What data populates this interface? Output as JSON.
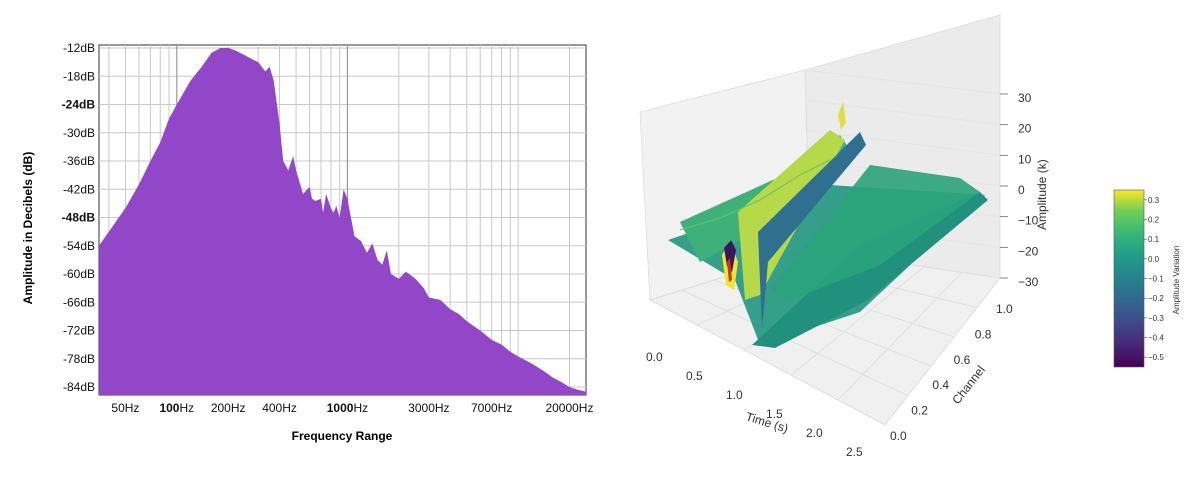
{
  "chart_data": [
    {
      "type": "area",
      "xscale": "log",
      "xlabel": "Frequency Range",
      "ylabel": "Amplitude in Decibels (dB)",
      "ylim": [
        -84,
        -12
      ],
      "xlim": [
        35,
        25000
      ],
      "grid": true,
      "fill_color": "#9247c8",
      "y_ticks": [
        {
          "value": -12,
          "label": "-12dB"
        },
        {
          "value": -18,
          "label": "-18dB"
        },
        {
          "value": -24,
          "label": "-24dB"
        },
        {
          "value": -30,
          "label": "-30dB"
        },
        {
          "value": -36,
          "label": "-36dB"
        },
        {
          "value": -42,
          "label": "-42dB"
        },
        {
          "value": -48,
          "label": "-48dB"
        },
        {
          "value": -54,
          "label": "-54dB"
        },
        {
          "value": -60,
          "label": "-60dB"
        },
        {
          "value": -66,
          "label": "-66dB"
        },
        {
          "value": -72,
          "label": "-72dB"
        },
        {
          "value": -78,
          "label": "-78dB"
        },
        {
          "value": -84,
          "label": "-84dB"
        }
      ],
      "x_ticks": [
        {
          "value": 50,
          "label": "50Hz"
        },
        {
          "value": 100,
          "label": "100Hz"
        },
        {
          "value": 200,
          "label": "200Hz"
        },
        {
          "value": 400,
          "label": "400Hz"
        },
        {
          "value": 1000,
          "label": "1000Hz"
        },
        {
          "value": 3000,
          "label": "3000Hz"
        },
        {
          "value": 7000,
          "label": "7000Hz"
        },
        {
          "value": 20000,
          "label": "20000Hz"
        }
      ],
      "x_gridlines": [
        40,
        50,
        60,
        70,
        80,
        90,
        100,
        200,
        300,
        400,
        500,
        600,
        700,
        800,
        900,
        1000,
        2000,
        3000,
        4000,
        5000,
        6000,
        7000,
        8000,
        9000,
        10000,
        20000
      ],
      "spectrum": {
        "x": [
          35,
          40,
          50,
          60,
          70,
          80,
          90,
          100,
          120,
          140,
          160,
          180,
          200,
          220,
          250,
          280,
          300,
          330,
          350,
          370,
          400,
          420,
          450,
          480,
          500,
          550,
          600,
          620,
          650,
          700,
          720,
          750,
          800,
          830,
          860,
          900,
          950,
          1000,
          1100,
          1200,
          1300,
          1400,
          1500,
          1600,
          1700,
          1800,
          2000,
          2200,
          2500,
          2800,
          3000,
          3500,
          4000,
          4500,
          5000,
          6000,
          7000,
          8000,
          9000,
          10000,
          12000,
          14000,
          16000,
          18000,
          20000,
          22000,
          25000
        ],
        "y": [
          -54,
          -51,
          -46,
          -41,
          -36,
          -32,
          -27,
          -24,
          -19,
          -16,
          -13,
          -12,
          -12,
          -12.5,
          -13.5,
          -14.5,
          -15,
          -17,
          -16,
          -19,
          -28,
          -36,
          -38,
          -35,
          -38,
          -43,
          -41.5,
          -44,
          -44.5,
          -44,
          -47,
          -43,
          -46,
          -47,
          -45.5,
          -48,
          -42,
          -44,
          -52,
          -53,
          -55.5,
          -53.5,
          -57,
          -58,
          -55,
          -60,
          -61,
          -59.5,
          -61,
          -63,
          -65,
          -65.5,
          -67.5,
          -68.5,
          -70,
          -72,
          -74,
          -75,
          -76.5,
          -77.5,
          -79,
          -80.5,
          -82,
          -83,
          -84,
          -84.5,
          -85
        ]
      }
    },
    {
      "type": "surface-3d",
      "xlabel": "Time (s)",
      "ylabel": "Channel",
      "zlabel": "Amplitude (k)",
      "xlim": [
        0,
        2.5
      ],
      "ylim": [
        0,
        1.0
      ],
      "zlim": [
        -30,
        30
      ],
      "x_ticks": [
        "0.0",
        "0.5",
        "1.0",
        "1.5",
        "2.0",
        "2.5"
      ],
      "y_ticks": [
        "0.0",
        "0.2",
        "0.4",
        "0.6",
        "0.8",
        "1.0"
      ],
      "z_ticks": [
        "30",
        "20",
        "10",
        "0",
        "−10",
        "−20",
        "−30"
      ],
      "colormap": "viridis",
      "colorbar": {
        "label": "Amplitude Variation",
        "range": [
          -0.55,
          0.35
        ],
        "ticks": [
          "0.3",
          "0.2",
          "0.1",
          "0.0",
          "−0.1",
          "−0.2",
          "−0.3",
          "−0.4",
          "−0.5"
        ]
      }
    }
  ]
}
